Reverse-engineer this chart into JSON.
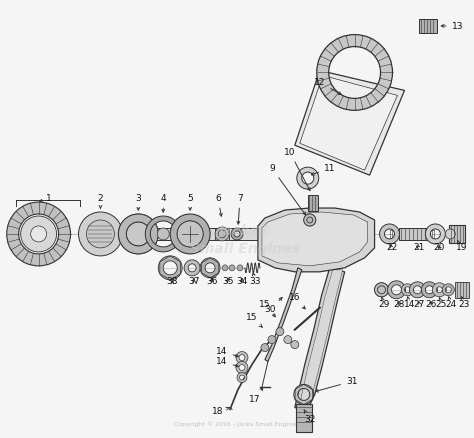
{
  "bg_color": "#f5f5f5",
  "fig_width": 4.74,
  "fig_height": 4.38,
  "dpi": 100,
  "watermark": "Jacks®\nSmall Engines",
  "copyright": "Copyright © 2016 - Jacks Small Engines",
  "lc": "#333333",
  "label_fs": 6.5
}
